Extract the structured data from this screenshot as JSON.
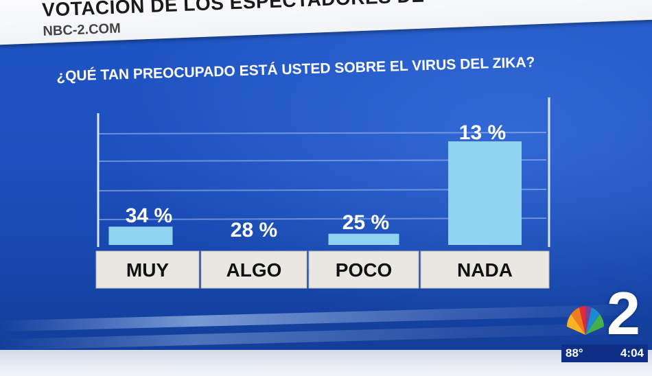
{
  "header": {
    "title": "VOTACIÓN DE LOS ESPECTADORES DE",
    "subtitle": "NBC-2.COM"
  },
  "question": "¿QUÉ TAN PREOCUPADO ESTÁ USTED SOBRE EL VIRUS DEL ZIKA?",
  "logo": {
    "number": "2"
  },
  "status": {
    "temperature": "88°",
    "time": "4:04"
  },
  "colors": {
    "bar": "#8fd3f0",
    "background": "#1d4fbd",
    "label_box": "#e9e7e1"
  },
  "chart_data": {
    "type": "bar",
    "categories": [
      "MUY",
      "ALGO",
      "POCO",
      "NADA"
    ],
    "values": [
      34,
      28,
      25,
      13
    ],
    "labels": [
      "34 %",
      "28 %",
      "25 %",
      "13 %"
    ],
    "bar_height_values": [
      4,
      0,
      2,
      28
    ],
    "title": "¿QUÉ TAN PREOCUPADO ESTÁ USTED SOBRE EL VIRUS DEL ZIKA?",
    "xlabel": "",
    "ylabel": "",
    "grid": true,
    "legend": "none"
  }
}
